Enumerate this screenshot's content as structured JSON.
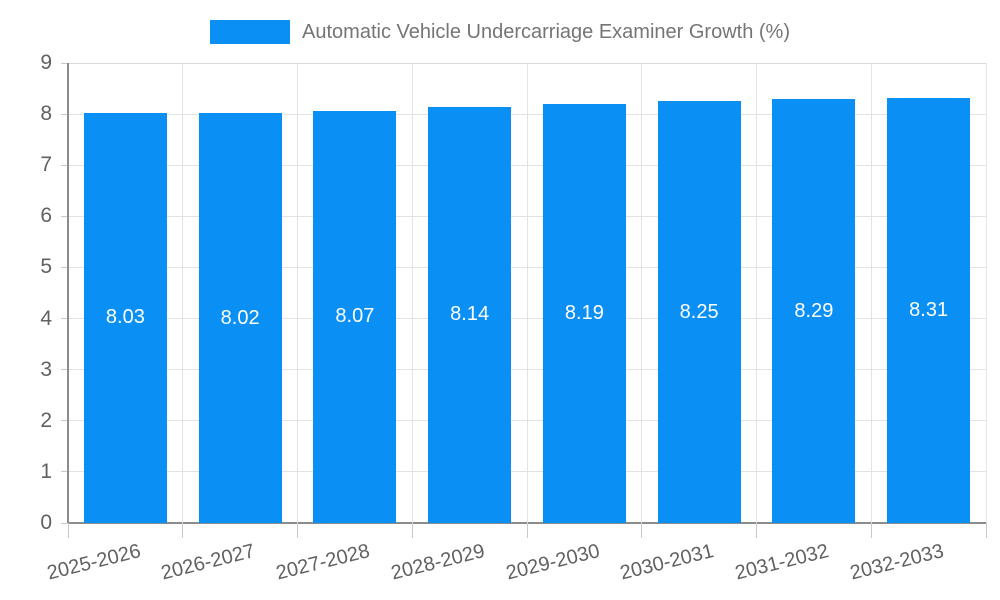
{
  "chart_data": {
    "type": "bar",
    "title": "Automatic Vehicle Undercarriage Examiner Growth (%)",
    "categories": [
      "2025-2026",
      "2026-2027",
      "2027-2028",
      "2028-2029",
      "2029-2030",
      "2030-2031",
      "2031-2032",
      "2032-2033"
    ],
    "values": [
      8.03,
      8.02,
      8.07,
      8.14,
      8.19,
      8.25,
      8.29,
      8.31
    ],
    "bar_value_labels": [
      "8.03",
      "8.02",
      "8.07",
      "8.14",
      "8.19",
      "8.25",
      "8.29",
      "8.31"
    ],
    "xlabel": "",
    "ylabel": "",
    "ylim": [
      0,
      9
    ],
    "y_tick_step": 1,
    "y_tick_labels": [
      "0",
      "1",
      "2",
      "3",
      "4",
      "5",
      "6",
      "7",
      "8",
      "9"
    ],
    "grid": true,
    "legend_position": "top-center",
    "colors": {
      "bar": "#0a90f5",
      "bar_label": "#ffffff",
      "axis_line": "#8c8c8c",
      "gridline": "#e3e3e3",
      "top_border": "#d9d9d9",
      "tick_mark": "#c9c9c9",
      "axis_text": "#616161",
      "title_text": "#757575",
      "background": "#ffffff"
    }
  }
}
